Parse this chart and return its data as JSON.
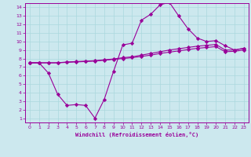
{
  "xlabel": "Windchill (Refroidissement éolien,°C)",
  "bg_color": "#cce8ee",
  "line_color": "#990099",
  "xlim": [
    -0.5,
    23.5
  ],
  "ylim": [
    0.5,
    14.5
  ],
  "xticks": [
    0,
    1,
    2,
    3,
    4,
    5,
    6,
    7,
    8,
    9,
    10,
    11,
    12,
    13,
    14,
    15,
    16,
    17,
    18,
    19,
    20,
    21,
    22,
    23
  ],
  "yticks": [
    1,
    2,
    3,
    4,
    5,
    6,
    7,
    8,
    9,
    10,
    11,
    12,
    13,
    14
  ],
  "line1_x": [
    0,
    1,
    2,
    3,
    4,
    5,
    6,
    7,
    8,
    9,
    10,
    11,
    12,
    13,
    14,
    15,
    16,
    17,
    18,
    19,
    20,
    21,
    22,
    23
  ],
  "line1_y": [
    7.5,
    7.5,
    6.3,
    3.8,
    2.5,
    2.6,
    2.5,
    1.0,
    3.2,
    6.5,
    9.6,
    9.8,
    12.5,
    13.2,
    14.3,
    14.6,
    13.0,
    11.5,
    10.4,
    10.0,
    10.1,
    9.5,
    9.0,
    9.2
  ],
  "line2_x": [
    0,
    1,
    2,
    3,
    4,
    5,
    6,
    7,
    8,
    9,
    10,
    11,
    12,
    13,
    14,
    15,
    16,
    17,
    18,
    19,
    20,
    21,
    22,
    23
  ],
  "line2_y": [
    7.5,
    7.5,
    7.5,
    7.5,
    7.6,
    7.65,
    7.7,
    7.75,
    7.85,
    7.95,
    8.1,
    8.2,
    8.4,
    8.6,
    8.8,
    9.0,
    9.15,
    9.3,
    9.45,
    9.55,
    9.65,
    9.0,
    9.0,
    9.2
  ],
  "line3_x": [
    0,
    1,
    2,
    3,
    4,
    5,
    6,
    7,
    8,
    9,
    10,
    11,
    12,
    13,
    14,
    15,
    16,
    17,
    18,
    19,
    20,
    21,
    22,
    23
  ],
  "line3_y": [
    7.5,
    7.5,
    7.5,
    7.5,
    7.55,
    7.6,
    7.65,
    7.7,
    7.8,
    7.9,
    8.0,
    8.1,
    8.25,
    8.4,
    8.6,
    8.75,
    8.9,
    9.05,
    9.2,
    9.3,
    9.4,
    8.8,
    8.85,
    9.0
  ]
}
